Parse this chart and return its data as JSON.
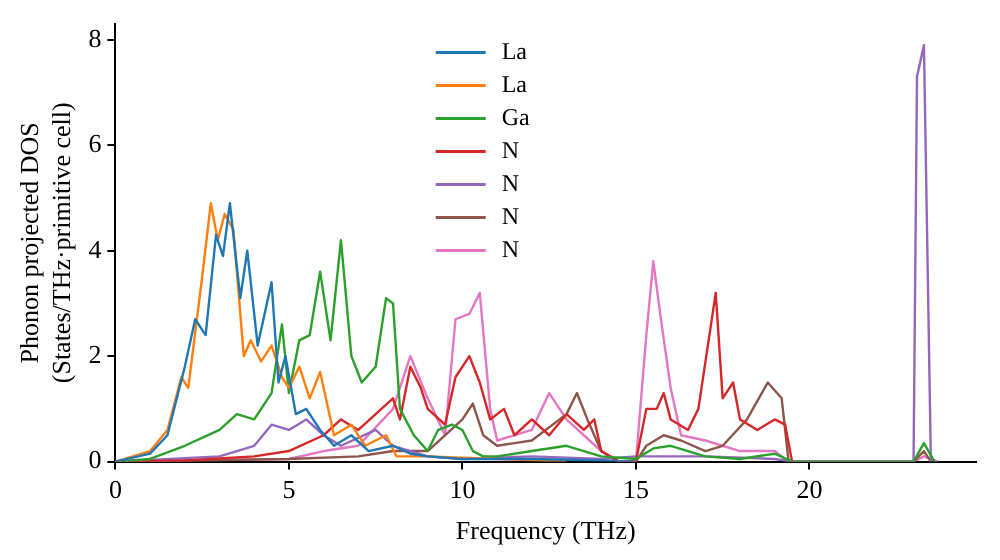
{
  "chart_data": {
    "type": "line",
    "xlabel": "Frequency (THz)",
    "ylabel": "Phonon projected DOS\n(States/THz·primitive cell)",
    "xlim": [
      0,
      24.8
    ],
    "xticks": [
      0,
      5,
      10,
      15,
      20
    ],
    "ylim": [
      0,
      8.3
    ],
    "yticks": [
      0,
      2,
      4,
      6,
      8
    ],
    "grid": false,
    "legend": "top",
    "marker": "none",
    "line_style": "solid",
    "series": [
      {
        "name": "La",
        "color": "#1f77b4",
        "x": [
          0,
          1,
          1.5,
          2,
          2.3,
          2.6,
          2.9,
          3.1,
          3.3,
          3.6,
          3.8,
          4.1,
          4.5,
          4.7,
          4.9,
          5.2,
          5.5,
          5.9,
          6.3,
          6.8,
          7.3,
          8,
          8.5,
          9,
          10,
          12,
          14,
          15
        ],
        "values": [
          0,
          0.15,
          0.5,
          1.8,
          2.7,
          2.4,
          4.3,
          3.9,
          4.9,
          3.1,
          4.0,
          2.2,
          3.4,
          1.5,
          2.0,
          0.9,
          1.0,
          0.6,
          0.3,
          0.5,
          0.2,
          0.3,
          0.15,
          0.1,
          0.05,
          0.05,
          0.02,
          0
        ]
      },
      {
        "name": "La",
        "color": "#ff7f0e",
        "x": [
          0,
          1,
          1.5,
          1.9,
          2.1,
          2.5,
          2.75,
          2.95,
          3.15,
          3.4,
          3.7,
          3.9,
          4.2,
          4.5,
          4.8,
          5,
          5.3,
          5.6,
          5.9,
          6.3,
          6.8,
          7.2,
          7.8,
          8.1,
          9,
          11,
          13
        ],
        "values": [
          0,
          0.2,
          0.6,
          1.6,
          1.4,
          3.5,
          4.9,
          4.2,
          4.7,
          4.4,
          2.0,
          2.3,
          1.9,
          2.2,
          1.6,
          1.4,
          1.8,
          1.2,
          1.7,
          0.5,
          0.7,
          0.3,
          0.5,
          0.1,
          0.1,
          0.05,
          0
        ]
      },
      {
        "name": "Ga",
        "color": "#2ca02c",
        "x": [
          0,
          1,
          2,
          3,
          3.5,
          4,
          4.5,
          4.8,
          5,
          5.3,
          5.6,
          5.9,
          6.2,
          6.5,
          6.8,
          7.1,
          7.5,
          7.8,
          8,
          8.2,
          8.6,
          9,
          9.3,
          9.7,
          10,
          10.3,
          10.6,
          11,
          12,
          13,
          14,
          15,
          15.5,
          16,
          17,
          18,
          19,
          19.5,
          23,
          23.3,
          23.6
        ],
        "values": [
          0,
          0.05,
          0.3,
          0.6,
          0.9,
          0.8,
          1.3,
          2.6,
          1.3,
          2.3,
          2.4,
          3.6,
          2.3,
          4.2,
          2.0,
          1.5,
          1.8,
          3.1,
          3.0,
          1.0,
          0.5,
          0.2,
          0.6,
          0.7,
          0.6,
          0.2,
          0.1,
          0.1,
          0.2,
          0.3,
          0.1,
          0.05,
          0.25,
          0.3,
          0.1,
          0.05,
          0.15,
          0,
          0,
          0.35,
          0
        ]
      },
      {
        "name": "N",
        "color": "#d62728",
        "x": [
          0,
          2,
          4,
          5,
          6,
          6.5,
          7,
          7.5,
          8,
          8.2,
          8.5,
          8.8,
          9,
          9.5,
          9.8,
          10.2,
          10.5,
          10.8,
          11.2,
          11.5,
          12,
          12.5,
          13,
          13.5,
          13.8,
          14,
          14.5,
          15,
          15.3,
          15.6,
          15.8,
          16,
          16.5,
          16.8,
          17.3,
          17.5,
          17.8,
          18,
          18.5,
          19,
          19.3,
          19.5
        ],
        "values": [
          0,
          0.02,
          0.1,
          0.2,
          0.5,
          0.8,
          0.6,
          0.9,
          1.2,
          0.8,
          1.8,
          1.4,
          1.0,
          0.7,
          1.6,
          2.0,
          1.5,
          0.8,
          1.0,
          0.5,
          0.8,
          0.5,
          0.9,
          0.6,
          0.8,
          0.2,
          0,
          0,
          1.0,
          1.0,
          1.3,
          0.8,
          0.6,
          1.0,
          3.2,
          1.2,
          1.5,
          0.8,
          0.6,
          0.8,
          0.7,
          0
        ]
      },
      {
        "name": "N",
        "color": "#9467bd",
        "x": [
          0,
          3,
          4,
          4.5,
          5,
          5.5,
          6,
          6.5,
          7.5,
          8,
          9,
          10,
          12,
          14,
          15,
          17,
          19,
          19.5,
          23,
          23.1,
          23.3,
          23.5
        ],
        "values": [
          0,
          0.1,
          0.3,
          0.7,
          0.6,
          0.8,
          0.5,
          0.3,
          0.6,
          0.3,
          0.1,
          0.05,
          0.1,
          0.05,
          0.1,
          0.1,
          0.05,
          0,
          0,
          7.3,
          7.9,
          0
        ]
      },
      {
        "name": "N",
        "color": "#8c564b",
        "x": [
          0,
          5,
          7,
          8,
          9,
          10,
          10.3,
          10.6,
          11,
          12,
          13,
          13.3,
          13.6,
          14,
          14.5,
          15,
          15.3,
          15.8,
          16.3,
          17,
          17.5,
          18.2,
          18.8,
          19.2,
          19.4,
          23,
          23.3,
          23.5
        ],
        "values": [
          0,
          0.05,
          0.1,
          0.2,
          0.2,
          0.8,
          1.1,
          0.5,
          0.3,
          0.4,
          0.9,
          1.3,
          0.8,
          0.2,
          0,
          0,
          0.3,
          0.5,
          0.4,
          0.2,
          0.3,
          0.8,
          1.5,
          1.2,
          0,
          0,
          0.2,
          0
        ]
      },
      {
        "name": "N",
        "color": "#e377c2",
        "x": [
          0,
          5,
          6,
          7,
          8,
          8.5,
          9,
          9.5,
          9.8,
          10.2,
          10.5,
          10.8,
          11,
          12,
          12.5,
          13,
          13.5,
          14,
          14.5,
          15,
          15.3,
          15.5,
          15.7,
          16,
          16.3,
          17,
          18,
          19,
          19.4,
          23,
          23.3,
          23.7
        ],
        "values": [
          0,
          0.05,
          0.2,
          0.3,
          1.0,
          2.0,
          1.2,
          0.5,
          2.7,
          2.8,
          3.2,
          1.0,
          0.4,
          0.6,
          1.3,
          0.8,
          0.5,
          0.2,
          0,
          0,
          2.4,
          3.8,
          2.8,
          1.4,
          0.5,
          0.4,
          0.2,
          0.2,
          0,
          0,
          0.1,
          0
        ]
      }
    ]
  }
}
